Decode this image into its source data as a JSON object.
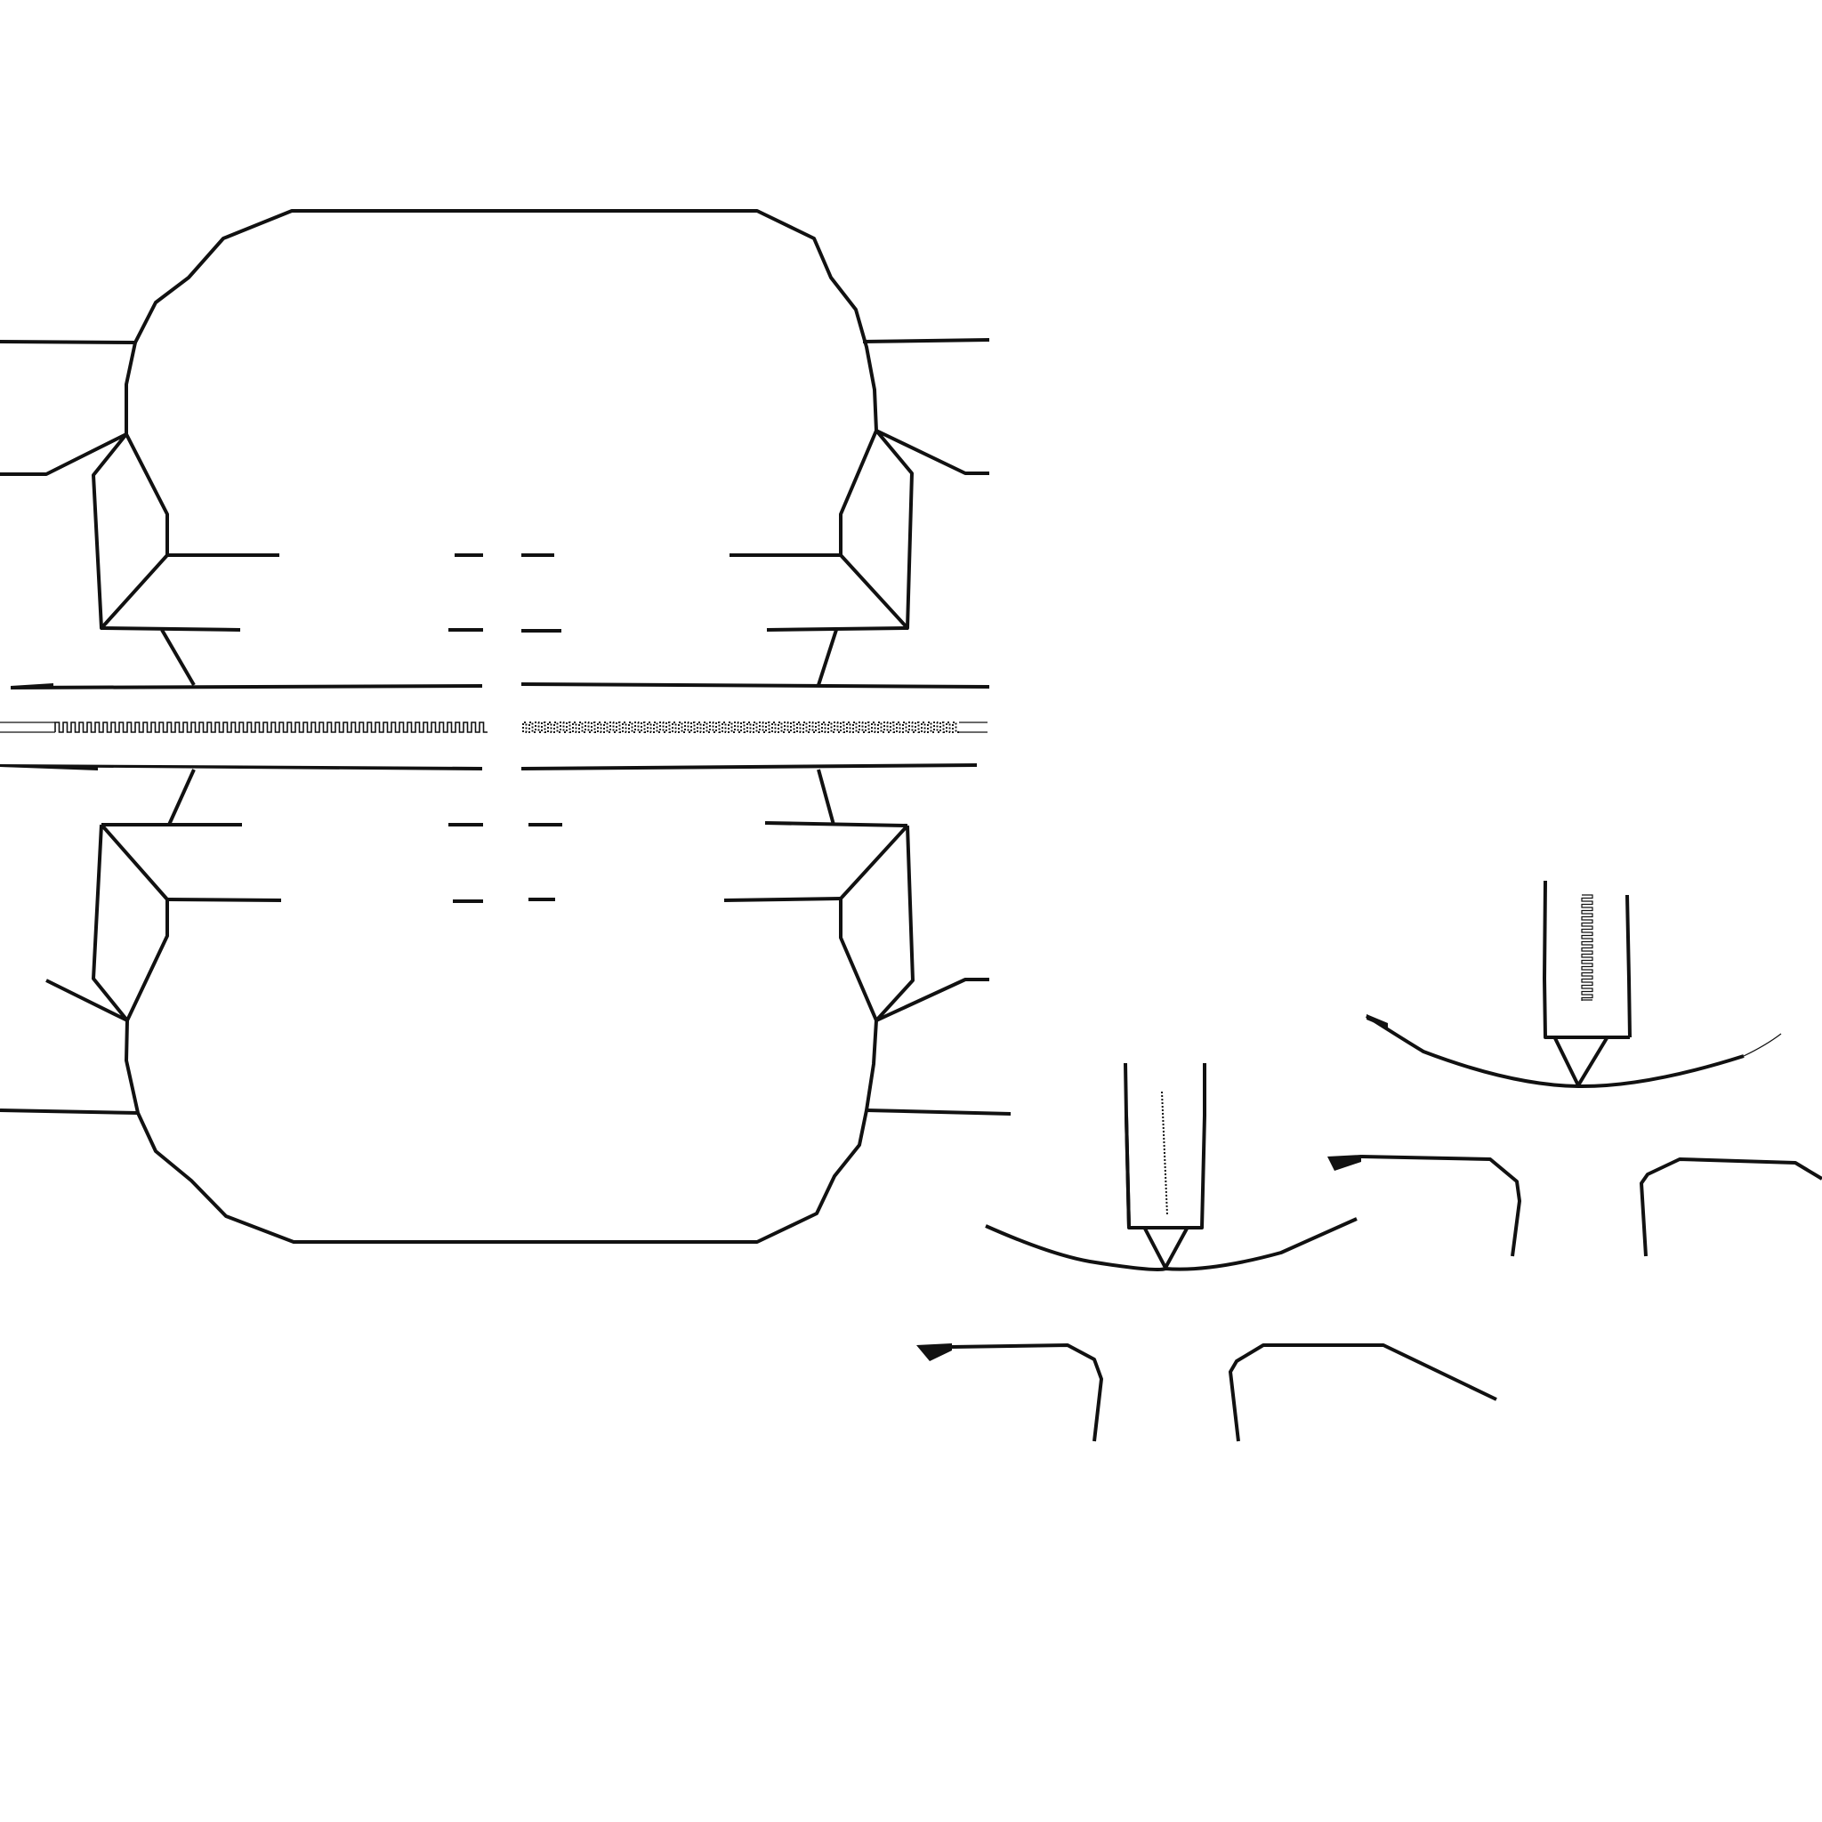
{
  "diagram": {
    "background": "#ffffff",
    "ink": "#111111",
    "components": [
      "upper-mold-housing",
      "lower-mold-housing",
      "parting-line-gap",
      "serrated-insert-strip",
      "injection-nozzle-detail-left",
      "injection-nozzle-detail-right"
    ],
    "labels": []
  }
}
